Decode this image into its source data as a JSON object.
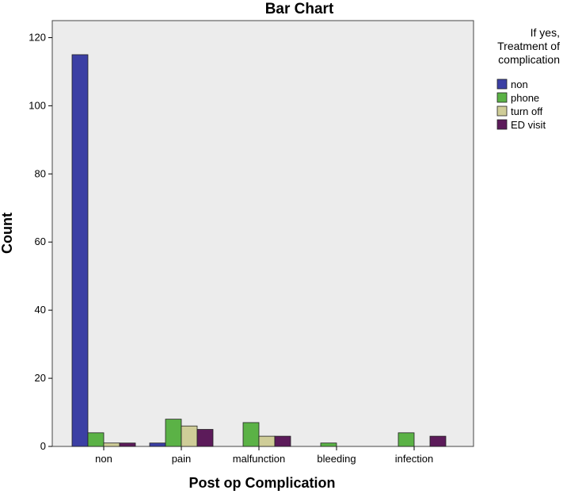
{
  "chart_data": {
    "type": "bar",
    "title": "Bar Chart",
    "xlabel": "Post op Complication",
    "ylabel": "Count",
    "categories": [
      "non",
      "pain",
      "malfunction",
      "bleeding",
      "infection"
    ],
    "ylim": [
      0,
      125
    ],
    "yticks": [
      0,
      20,
      40,
      60,
      80,
      100,
      120
    ],
    "grid": false,
    "legend_title_lines": [
      "If yes,",
      "Treatment of",
      "complication"
    ],
    "legend_position": "right",
    "series": [
      {
        "name": "non",
        "color": "#3b3fa4",
        "values": [
          115,
          1,
          0,
          0,
          0
        ]
      },
      {
        "name": "phone",
        "color": "#5bb246",
        "values": [
          4,
          8,
          7,
          1,
          4
        ]
      },
      {
        "name": "turn off",
        "color": "#cfcd98",
        "values": [
          1,
          6,
          3,
          0,
          0
        ]
      },
      {
        "name": "ED visit",
        "color": "#5c1b5a",
        "values": [
          1,
          5,
          3,
          0,
          3
        ]
      }
    ]
  }
}
